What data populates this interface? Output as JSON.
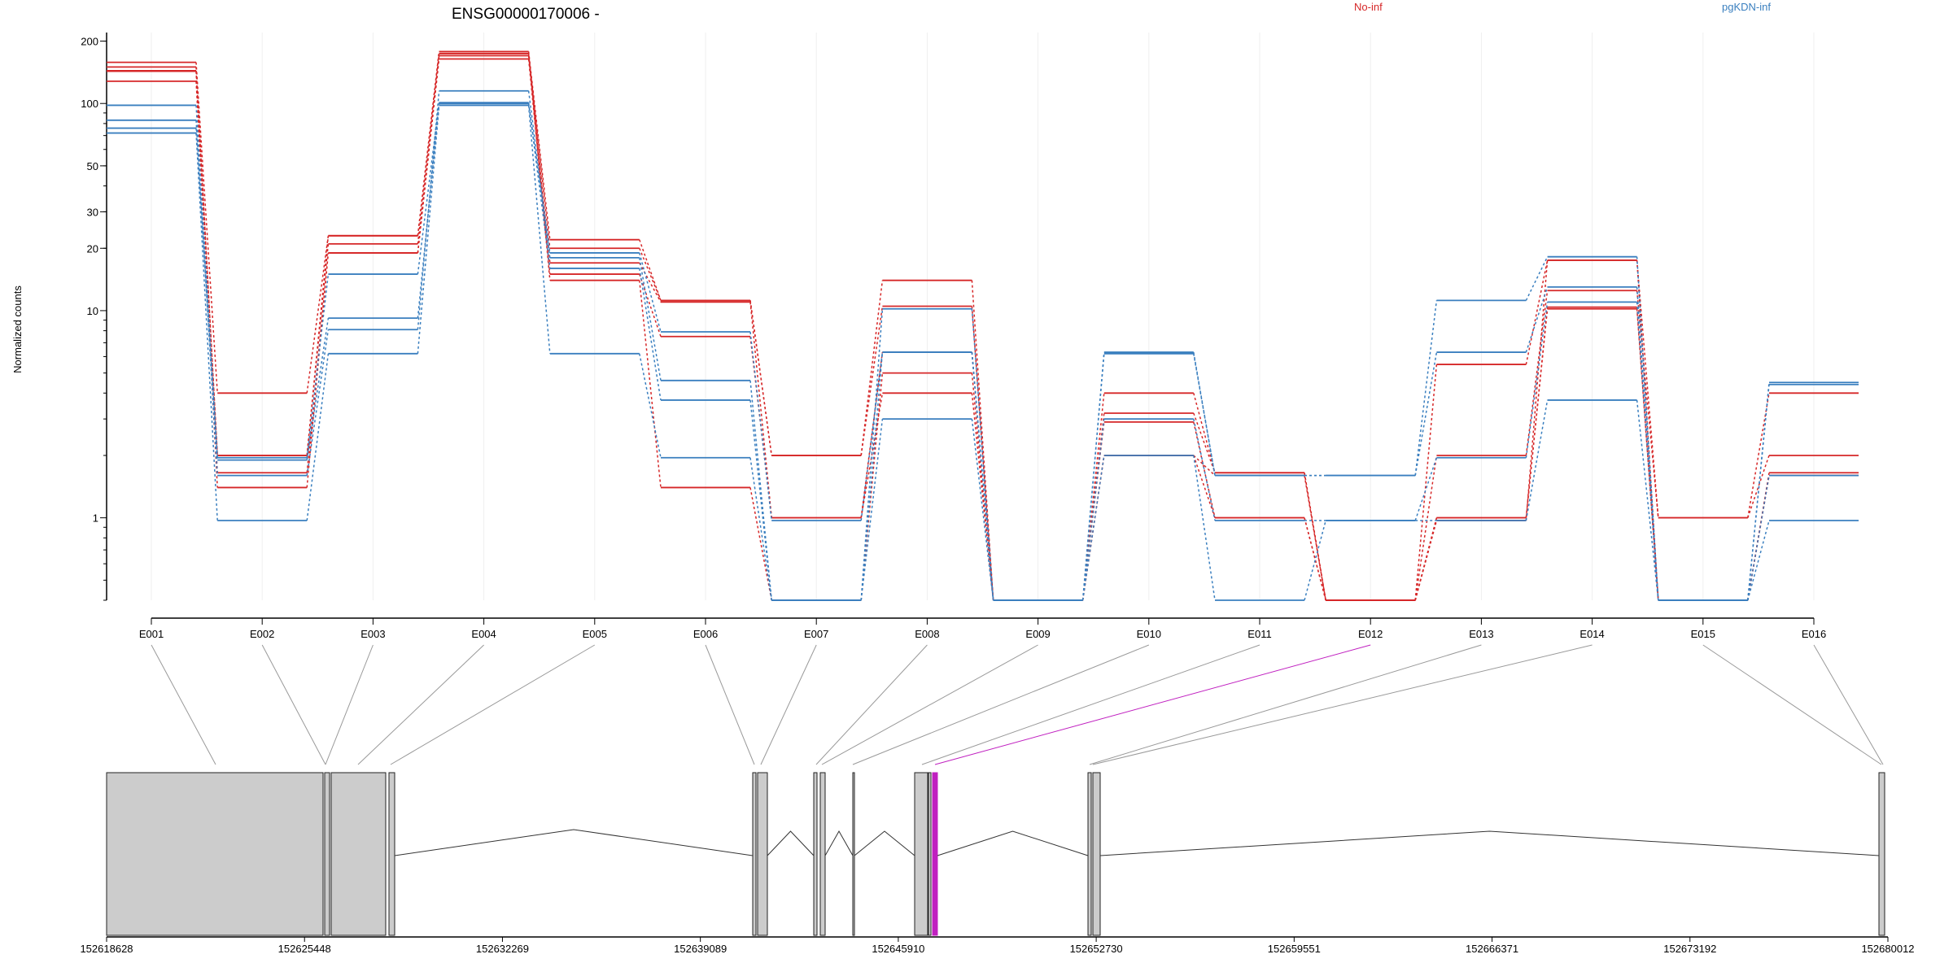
{
  "chart_data": {
    "type": "line",
    "title": "ENSG00000170006 -",
    "ylabel": "Normalized counts",
    "xlabel": "",
    "y_scale": "log",
    "ylim": [
      0.4,
      220
    ],
    "y_ticks": [
      1,
      10,
      20,
      30,
      50,
      100,
      200
    ],
    "grid": "vertical",
    "legend": [
      {
        "name": "No-inf",
        "color": "#d62728"
      },
      {
        "name": "pgKDN-inf",
        "color": "#3a7fbf"
      }
    ],
    "categories": [
      "E001",
      "E002",
      "E003",
      "E004",
      "E005",
      "E006",
      "E007",
      "E008",
      "E009",
      "E010",
      "E011",
      "E012",
      "E013",
      "E014",
      "E015",
      "E016"
    ],
    "series": [
      {
        "group": "No-inf",
        "color": "#d62728",
        "values": [
          158,
          4.0,
          23,
          178,
          22,
          11.2,
          2.0,
          14,
          0.4,
          4.0,
          1.65,
          0.4,
          5.5,
          17.5,
          1.0,
          4.0
        ]
      },
      {
        "group": "No-inf",
        "color": "#d62728",
        "values": [
          144,
          2.0,
          21,
          174,
          20,
          11.2,
          2.0,
          10.5,
          0.4,
          3.2,
          1.65,
          0.4,
          2.0,
          12.5,
          1.0,
          2.0
        ]
      },
      {
        "group": "No-inf",
        "color": "#d62728",
        "values": [
          143,
          1.65,
          19,
          170,
          17,
          11.0,
          1.0,
          6.3,
          0.4,
          2.0,
          1.0,
          0.4,
          1.0,
          10.2,
          0.4,
          1.65
        ]
      },
      {
        "group": "No-inf",
        "color": "#d62728",
        "values": [
          128,
          1.4,
          19,
          164,
          15,
          7.5,
          1.0,
          4.0,
          0.4,
          2.9,
          1.0,
          0.4,
          1.0,
          10.4,
          0.4,
          1.6
        ]
      },
      {
        "group": "No-inf",
        "color": "#d62728",
        "values": [
          150,
          2.0,
          23,
          178,
          14,
          1.4,
          0.4,
          5.0,
          0.4,
          2.0,
          1.6,
          0.4,
          0.97,
          17.5,
          0.4,
          1.6
        ]
      },
      {
        "group": "pgKDN-inf",
        "color": "#3a7fbf",
        "values": [
          98,
          1.9,
          9.2,
          100,
          19,
          7.9,
          0.97,
          6.3,
          0.4,
          6.3,
          1.6,
          1.6,
          11.2,
          18.2,
          0.4,
          4.5
        ]
      },
      {
        "group": "pgKDN-inf",
        "color": "#3a7fbf",
        "values": [
          83,
          1.6,
          8.1,
          115,
          18,
          4.6,
          0.4,
          6.3,
          0.4,
          6.2,
          1.6,
          1.6,
          6.3,
          13.0,
          0.4,
          4.4
        ]
      },
      {
        "group": "pgKDN-inf",
        "color": "#3a7fbf",
        "values": [
          76,
          1.95,
          15,
          101,
          16,
          3.7,
          0.4,
          10.2,
          0.4,
          3.0,
          0.97,
          0.97,
          1.95,
          11.0,
          0.4,
          1.6
        ]
      },
      {
        "group": "pgKDN-inf",
        "color": "#3a7fbf",
        "values": [
          72,
          0.97,
          6.2,
          98,
          6.2,
          1.95,
          0.4,
          3.0,
          0.4,
          2.0,
          0.4,
          0.97,
          0.97,
          3.7,
          0.4,
          0.97
        ]
      }
    ],
    "gene_model": {
      "coord_ticks": [
        "152618628",
        "152625448",
        "152632269",
        "152639089",
        "152645910",
        "152652730",
        "152659551",
        "152666371",
        "152673192",
        "152680012"
      ],
      "highlighted_exon": "E012",
      "highlight_color": "#c020c0"
    }
  }
}
